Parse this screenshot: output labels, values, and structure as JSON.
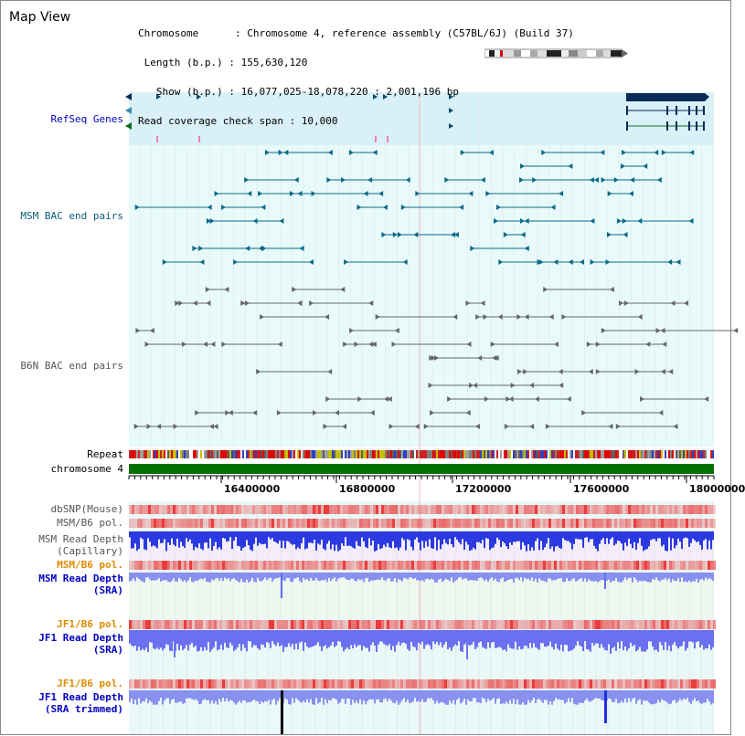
{
  "header": {
    "title": "Map View",
    "info_lines": [
      "Chromosome      : Chromosome 4, reference assembly (C57BL/6J) (Build 37)",
      " Length (b.p.) : 155,630,120",
      "   Show (b.p.) : 16,077,025-18,078,220 : 2,001,196 bp",
      "Read coverage check span : 10,000"
    ]
  },
  "tracks": {
    "refseq": "RefSeq Genes",
    "msm_bac": "MSM BAC end pairs",
    "b6n_bac": "B6N BAC end pairs",
    "repeat": "Repeat",
    "chromosome": "chromosome 4",
    "dbsnp": "dbSNP(Mouse)",
    "msm_b6_pol_1": "MSM/B6 pol.",
    "msm_depth_cap_1": "MSM Read Depth",
    "msm_depth_cap_2": "(Capillary)",
    "msm_b6_pol_2": "MSM/B6 pol.",
    "msm_depth_sra_1": "MSM Read Depth",
    "msm_depth_sra_2": "(SRA)",
    "jf1_b6_pol_1": "JF1/B6 pol.",
    "jf1_depth_sra_1": "JF1 Read Depth",
    "jf1_depth_sra_2": "(SRA)",
    "jf1_b6_pol_2": "JF1/B6 pol.",
    "jf1_depth_trim_1": "JF1 Read Depth",
    "jf1_depth_trim_2": "(SRA trimmed)"
  },
  "axis_ticks": [
    "16400000",
    "16800000",
    "17200000",
    "17600000",
    "18000000"
  ],
  "colors": {
    "refseq_label": "#0000c0",
    "msm_label": "#0a5a78",
    "b6n_label": "#555555",
    "pol_label": "#e08a00",
    "depth_label": "#0000c0",
    "chromosome_bar": "#007000",
    "refseq_bg": "#d8f0f8",
    "bac_bg": "#e8fafa"
  }
}
